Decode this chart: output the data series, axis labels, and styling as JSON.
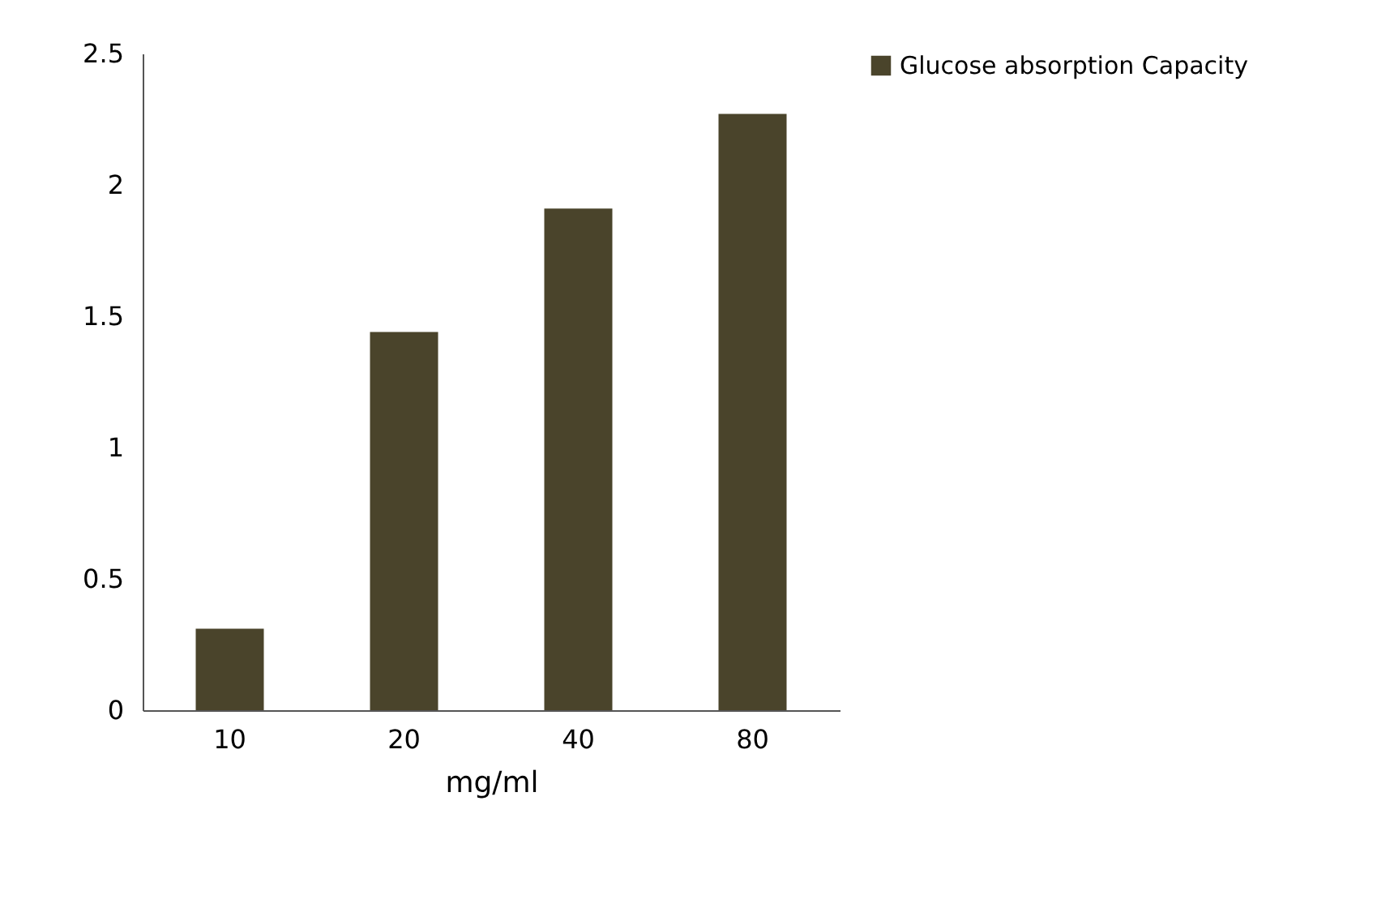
{
  "chart_data": {
    "type": "bar",
    "xlabel": "mg/ml",
    "categories": [
      "10",
      "20",
      "40",
      "80"
    ],
    "series": [
      {
        "name": "Glucose absorption Capacity",
        "color": "#4a442b",
        "values": [
          0.31,
          1.44,
          1.91,
          2.27
        ]
      }
    ],
    "ylim": [
      0,
      2.5
    ],
    "yticks": [
      0,
      0.5,
      1,
      1.5,
      2,
      2.5
    ],
    "grid": false,
    "legend": "right"
  }
}
